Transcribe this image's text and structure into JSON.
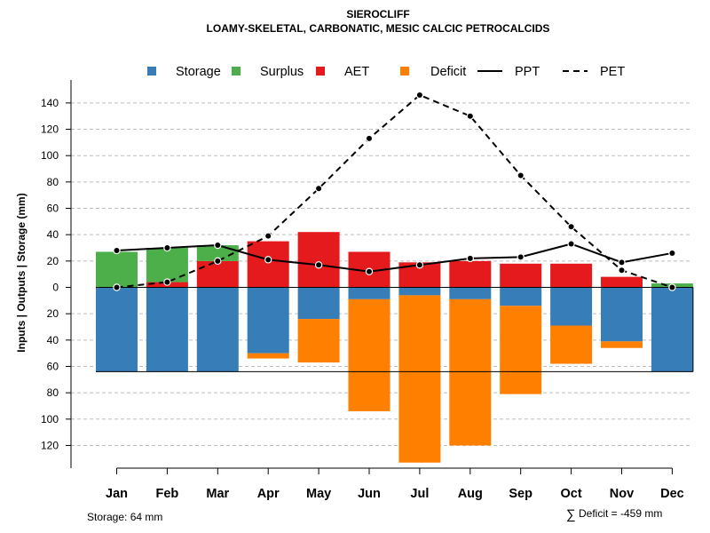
{
  "chart_data": {
    "type": "bar",
    "title": "SIEROCLIFF",
    "subtitle": "LOAMY-SKELETAL, CARBONATIC, MESIC CALCIC PETROCALCIDS",
    "ylabel": "Inputs | Outputs | Storage     (mm)",
    "xlabel": "",
    "ylim": [
      -138,
      150
    ],
    "y_ticks": [
      140,
      120,
      100,
      80,
      60,
      40,
      20,
      0,
      -20,
      -40,
      -60,
      -80,
      -100,
      -120
    ],
    "y_tick_labels": [
      "140",
      "120",
      "100",
      "80",
      "60",
      "40",
      "20",
      "0",
      "20",
      "40",
      "60",
      "80",
      "100",
      "120"
    ],
    "gridlines": "dashed horizontal",
    "legend_position": "top",
    "colors": {
      "storage": "#377EB8",
      "surplus": "#4DAF4A",
      "aet": "#E41A1C",
      "deficit": "#FF7F00",
      "ppt": "#000000",
      "pet": "#000000"
    },
    "legend": [
      {
        "key": "storage",
        "label": "Storage",
        "symbol": "square"
      },
      {
        "key": "surplus",
        "label": "Surplus",
        "symbol": "square"
      },
      {
        "key": "aet",
        "label": "AET",
        "symbol": "square"
      },
      {
        "key": "deficit",
        "label": "Deficit",
        "symbol": "square"
      },
      {
        "key": "ppt",
        "label": "PPT",
        "symbol": "solid-line"
      },
      {
        "key": "pet",
        "label": "PET",
        "symbol": "dashed-line"
      }
    ],
    "categories": [
      "Jan",
      "Feb",
      "Mar",
      "Apr",
      "May",
      "Jun",
      "Jul",
      "Aug",
      "Sep",
      "Oct",
      "Nov",
      "Dec"
    ],
    "series": [
      {
        "name": "Storage",
        "key": "storage",
        "values": [
          64,
          64,
          64,
          50,
          24,
          9,
          6,
          9,
          14,
          29,
          41,
          64
        ]
      },
      {
        "name": "Deficit",
        "key": "deficit",
        "values": [
          0,
          0,
          0,
          4,
          33,
          85,
          127,
          111,
          67,
          29,
          5,
          0
        ]
      },
      {
        "name": "AET",
        "key": "aet",
        "values": [
          0,
          4,
          20,
          35,
          42,
          27,
          19,
          20,
          18,
          18,
          8,
          0
        ]
      },
      {
        "name": "Surplus",
        "key": "surplus",
        "values": [
          27,
          26,
          12,
          0,
          0,
          0,
          0,
          0,
          0,
          0,
          0,
          3
        ]
      },
      {
        "name": "PPT",
        "key": "ppt",
        "values": [
          28,
          30,
          32,
          21,
          17,
          12,
          17,
          22,
          23,
          33,
          19,
          26
        ]
      },
      {
        "name": "PET",
        "key": "pet",
        "values": [
          0,
          4,
          20,
          39,
          75,
          113,
          146,
          130,
          85,
          46,
          13,
          0
        ]
      }
    ],
    "storage_capacity": 64,
    "footer_left": "Storage: 64 mm",
    "footer_right_symbol": "∑",
    "footer_right": "Deficit = -459 mm"
  }
}
